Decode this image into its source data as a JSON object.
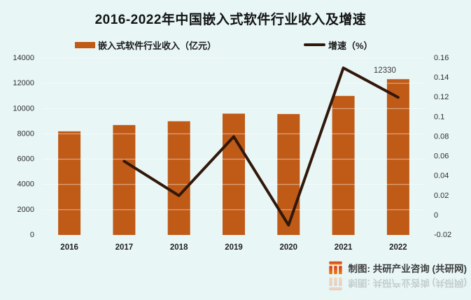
{
  "title": "2016-2022年中国嵌入式软件行业收入及增速",
  "legend": {
    "bar_label": "嵌入式软件行业收入（亿元）",
    "line_label": "增速（%）"
  },
  "footer": {
    "credit": "制图: 共研产业咨询 (共研网)",
    "logo": "gongyan-logo"
  },
  "colors": {
    "background": "#E9F6F6",
    "bar": "#C05A17",
    "line": "#31180A",
    "title_text": "#131313",
    "tick_text": "#2D2D2D",
    "credit_text": "#3D3D3D",
    "logo_top": "#D63A26",
    "logo_bottom": "#F08300"
  },
  "chart_data": {
    "type": "bar+line combo",
    "title": "2016-2022年中国嵌入式软件行业收入及增速",
    "categories": [
      "2016",
      "2017",
      "2018",
      "2019",
      "2020",
      "2021",
      "2022"
    ],
    "series": [
      {
        "name": "嵌入式软件行业收入（亿元）",
        "type": "bar",
        "axis": "left",
        "values": [
          8200,
          8700,
          9000,
          9600,
          9570,
          11000,
          12330
        ]
      },
      {
        "name": "增速（%）",
        "type": "line",
        "axis": "right",
        "values": [
          null,
          0.055,
          0.02,
          0.08,
          -0.01,
          0.15,
          0.12
        ]
      }
    ],
    "left_axis": {
      "min": 0,
      "max": 14000,
      "tick_values": [
        0,
        2000,
        4000,
        6000,
        8000,
        10000,
        12000,
        14000
      ],
      "ticks": [
        "0",
        "2000",
        "4000",
        "6000",
        "8000",
        "10000",
        "12000",
        "14000"
      ]
    },
    "right_axis": {
      "min": -0.02,
      "max": 0.16,
      "tick_values": [
        -0.02,
        0,
        0.02,
        0.04,
        0.06,
        0.08,
        0.1,
        0.12,
        0.14,
        0.16
      ],
      "ticks": [
        "-0.02",
        "0",
        "0.02",
        "0.04",
        "0.06",
        "0.08",
        "0.1",
        "0.12",
        "0.14",
        "0.16"
      ]
    },
    "data_label": {
      "category": "2022",
      "text": "12330"
    },
    "grid": "faint horizontal gridlines over bars",
    "legend_position": "top"
  }
}
